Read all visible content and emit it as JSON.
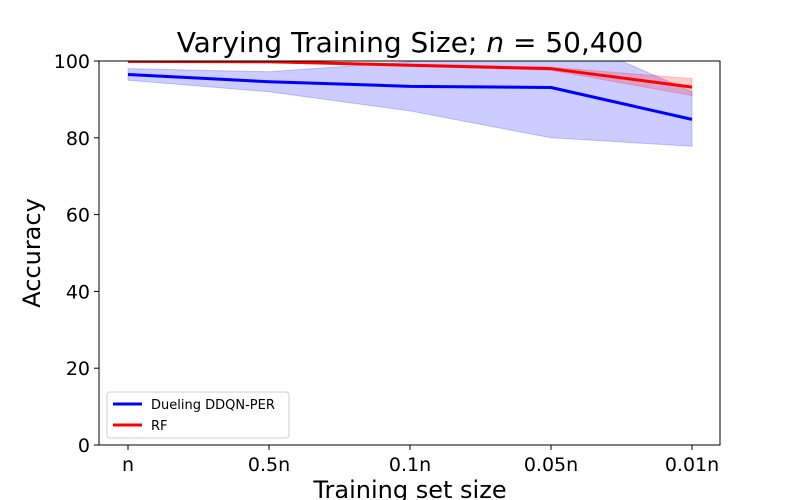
{
  "chart_data": {
    "type": "line",
    "title": "Varying Training Size; n = 50,400",
    "title_parts": {
      "prefix": "Varying Training Size; ",
      "var": "n",
      "suffix": " = 50,400"
    },
    "xlabel": "Training set size",
    "ylabel": "Accuracy",
    "categories": [
      "n",
      "0.5n",
      "0.1n",
      "0.05n",
      "0.01n"
    ],
    "ylim": [
      0,
      100
    ],
    "yticks": [
      0,
      20,
      40,
      60,
      80,
      100
    ],
    "grid": false,
    "legend_position": "lower-left",
    "series": [
      {
        "name": "Dueling DDQN-PER",
        "color": "#0000ff",
        "band_color": "#0000ff",
        "values": [
          96.5,
          94.6,
          93.4,
          93.1,
          84.8
        ],
        "lower": [
          95.0,
          92.0,
          87.0,
          80.0,
          77.8
        ],
        "upper": [
          98.0,
          97.2,
          99.8,
          108.0,
          92.0
        ]
      },
      {
        "name": "RF",
        "color": "#ff0000",
        "band_color": "#ff0000",
        "values": [
          99.9,
          99.8,
          98.9,
          98.0,
          93.2
        ],
        "lower": [
          99.7,
          99.6,
          98.6,
          97.6,
          91.0
        ],
        "upper": [
          100.1,
          100.0,
          99.2,
          98.4,
          95.4
        ]
      }
    ]
  }
}
